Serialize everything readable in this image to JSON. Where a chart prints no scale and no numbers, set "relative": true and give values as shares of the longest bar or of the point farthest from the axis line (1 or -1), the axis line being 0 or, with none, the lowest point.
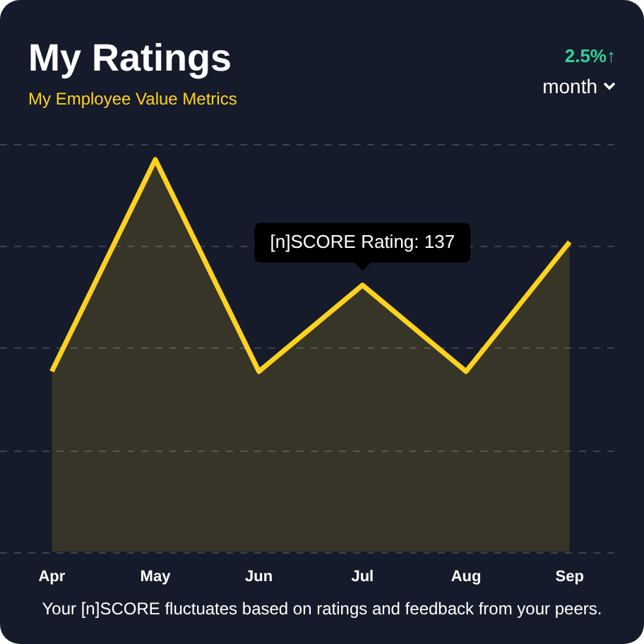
{
  "chart_data": {
    "type": "area",
    "title": "My Ratings",
    "subtitle": "My Employee Value Metrics",
    "categories": [
      "Apr",
      "May",
      "Jun",
      "Jul",
      "Aug",
      "Sep"
    ],
    "values": [
      0.46,
      1,
      0.46,
      0.68,
      0.46,
      0.79
    ],
    "color": "#ffd21f",
    "relative": true,
    "grid": true,
    "annotations": [
      "2.5%↑",
      "month",
      "Your [n]SCORE fluctuates based on ratings and feedback from your peers.",
      {
        "text": "[n]SCORE Rating: 137",
        "x": "Jul",
        "y": 0.68
      }
    ]
  }
}
